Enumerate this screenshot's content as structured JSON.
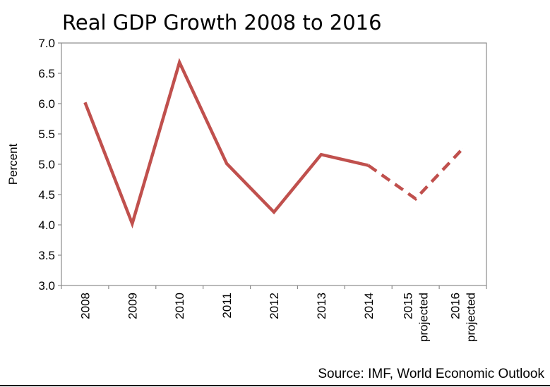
{
  "chart_data": {
    "type": "line",
    "title": "Real GDP Growth 2008 to 2016",
    "ylabel": "Percent",
    "xlabel": "",
    "ylim": [
      3.0,
      7.0
    ],
    "ytick_values": [
      3.0,
      3.5,
      4.0,
      4.5,
      5.0,
      5.5,
      6.0,
      6.5,
      7.0
    ],
    "ytick_labels": [
      "3.0",
      "3.5",
      "4.0",
      "4.5",
      "5.0",
      "5.5",
      "6.0",
      "6.5",
      "7.0"
    ],
    "categories": [
      [
        "2008"
      ],
      [
        "2009"
      ],
      [
        "2010"
      ],
      [
        "2011"
      ],
      [
        "2012"
      ],
      [
        "2013"
      ],
      [
        "2014"
      ],
      [
        "2015",
        "projected"
      ],
      [
        "2016",
        "projected"
      ]
    ],
    "series": [
      {
        "values": [
          6.02,
          4.02,
          6.68,
          5.01,
          4.21,
          5.16,
          4.98,
          4.43,
          5.26
        ],
        "color": "#c0504d",
        "solid_until_index": 6,
        "dashed_from_index": 6
      }
    ],
    "grid": false,
    "legend": "none",
    "source": "Source: IMF, World Economic Outlook"
  }
}
